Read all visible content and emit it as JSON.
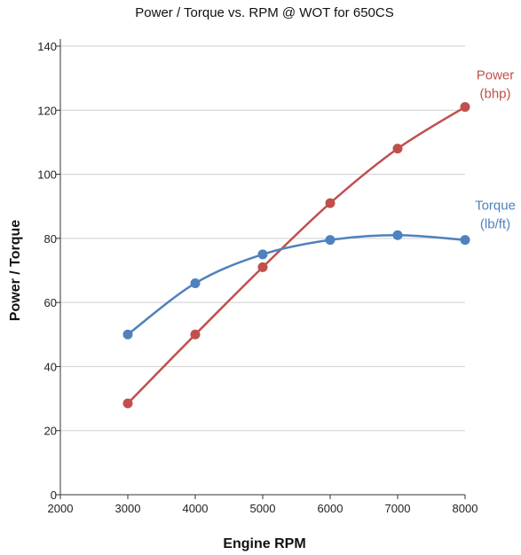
{
  "chart_data": {
    "type": "line",
    "title": "Power / Torque vs. RPM @ WOT for 650CS",
    "xlabel": "Engine RPM",
    "ylabel": "Power / Torque",
    "xlim": [
      2000,
      8000
    ],
    "ylim": [
      0,
      140
    ],
    "xticks": [
      2000,
      3000,
      4000,
      5000,
      6000,
      7000,
      8000
    ],
    "yticks": [
      0,
      20,
      40,
      60,
      80,
      100,
      120,
      140
    ],
    "grid": "horizontal",
    "legend_placement": "end-of-line labels (right)",
    "x": [
      3000,
      4000,
      5000,
      6000,
      7000,
      8000
    ],
    "series": [
      {
        "name": "Power (bhp)",
        "label_lines": [
          "Power",
          "(bhp)"
        ],
        "color": "#c0504d",
        "values": [
          28.5,
          50,
          71,
          91,
          108,
          121
        ]
      },
      {
        "name": "Torque (lb/ft)",
        "label_lines": [
          "Torque",
          "(lb/ft)"
        ],
        "color": "#4f81bd",
        "values": [
          50,
          66,
          75,
          79.5,
          81,
          79.5
        ]
      }
    ]
  }
}
